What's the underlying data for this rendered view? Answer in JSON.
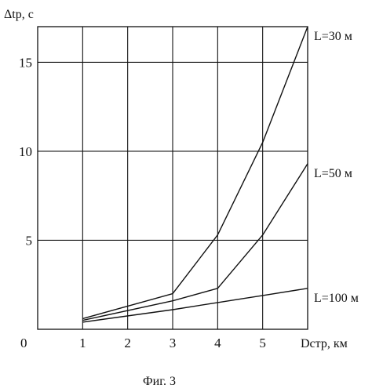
{
  "chart_data": {
    "type": "line",
    "title": "",
    "ylabel": "Δtр, с",
    "xlabel": "Dстр, км",
    "caption": "Фиг. 3",
    "origin_label": "0",
    "xlim": [
      0,
      6
    ],
    "ylim": [
      0,
      17
    ],
    "x_ticks": [
      1,
      2,
      3,
      4,
      5
    ],
    "x_tick_labels": [
      "1",
      "2",
      "3",
      "4",
      "5"
    ],
    "y_ticks": [
      5,
      10,
      15
    ],
    "y_tick_labels": [
      "5",
      "10",
      "15"
    ],
    "grid": true,
    "legend": "labels at line ends",
    "series": [
      {
        "name": "L=30 м",
        "x": [
          1,
          3,
          4,
          5,
          6
        ],
        "y": [
          0.6,
          2.0,
          5.3,
          10.5,
          17.0
        ]
      },
      {
        "name": "L=50 м",
        "x": [
          1,
          3,
          4,
          5,
          6
        ],
        "y": [
          0.5,
          1.6,
          2.3,
          5.3,
          9.3
        ]
      },
      {
        "name": "L=100 м",
        "x": [
          1,
          3,
          4,
          5,
          6
        ],
        "y": [
          0.4,
          1.1,
          1.5,
          1.9,
          2.3
        ]
      }
    ]
  }
}
